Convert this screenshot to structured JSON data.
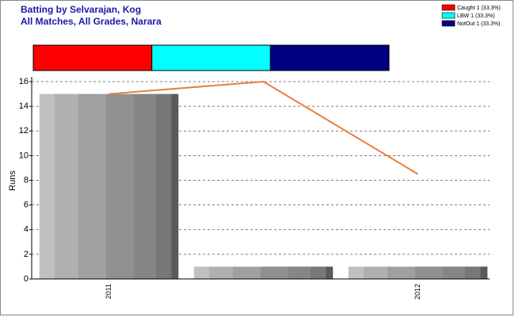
{
  "chart_data": {
    "type": "bar",
    "title": "Batting by Selvarajan, Kog",
    "subtitle": "All Matches, All Grades, Narara",
    "y_label": "Runs",
    "categories": [
      "2011",
      null,
      "2012"
    ],
    "values": [
      15,
      1,
      1
    ],
    "line_values": [
      15,
      16,
      8.5
    ],
    "line_color": "#e8803a",
    "ylim": [
      0,
      16
    ],
    "yticks": [
      0,
      2,
      4,
      6,
      8,
      10,
      12,
      14,
      16
    ],
    "grid": true,
    "dismissals": [
      {
        "label": "Caught 1 (33.3%)",
        "value": 1,
        "color": "#ff0000"
      },
      {
        "label": "LBW 1 (33.3%)",
        "value": 1,
        "color": "#00ffff"
      },
      {
        "label": "NotOut 1 (33.3%)",
        "value": 1,
        "color": "#000080"
      }
    ]
  }
}
